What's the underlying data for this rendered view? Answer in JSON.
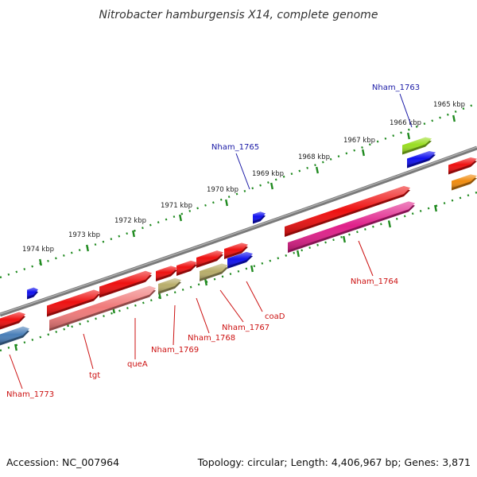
{
  "title": "Nitrobacter hamburgensis X14, complete genome",
  "footer": {
    "accession": "Accession: NC_007964",
    "summary": "Topology: circular; Length: 4,406,967 bp; Genes: 3,871"
  },
  "colors": {
    "backbone": "#808080",
    "ticks": "#1f8a1f",
    "label_top": "#1a1aa6",
    "label_bottom": "#cc1111",
    "red": "#ee1111",
    "salmon": "#f07a7a",
    "khaki": "#b8ad6a",
    "blue": "#1111ee",
    "steel": "#4a7fb8",
    "lime": "#99dd22",
    "magenta": "#e0208a",
    "orange": "#f08c10"
  },
  "scale": {
    "ticks": [
      {
        "label": "1965 kbp"
      },
      {
        "label": "1966 kbp"
      },
      {
        "label": "1967 kbp"
      },
      {
        "label": "1968 kbp"
      },
      {
        "label": "1969 kbp"
      },
      {
        "label": "1970 kbp"
      },
      {
        "label": "1971 kbp"
      },
      {
        "label": "1972 kbp"
      },
      {
        "label": "1973 kbp"
      },
      {
        "label": "1974 kbp"
      }
    ]
  },
  "genes": {
    "top": [
      {
        "label": "Nham_1763",
        "color": "lime"
      },
      {
        "label": "Nham_1765",
        "color": "blue"
      }
    ],
    "bottom": [
      {
        "label": "Nham_1764",
        "color": "magenta"
      },
      {
        "label": "coaD",
        "color": "blue"
      },
      {
        "label": "Nham_1767",
        "color": "khaki"
      },
      {
        "label": "Nham_1768",
        "color": "red"
      },
      {
        "label": "Nham_1769",
        "color": "khaki"
      },
      {
        "label": "queA",
        "color": "salmon"
      },
      {
        "label": "tgt",
        "color": "salmon"
      },
      {
        "label": "Nham_1773",
        "color": "steel"
      }
    ]
  }
}
